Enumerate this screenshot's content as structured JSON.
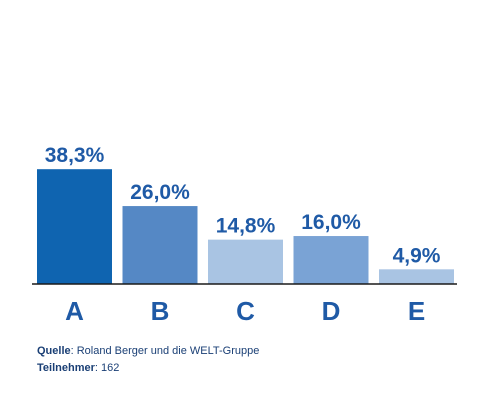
{
  "chart_data": {
    "type": "bar",
    "categories": [
      "A",
      "B",
      "C",
      "D",
      "E"
    ],
    "values": [
      38.3,
      26.0,
      14.8,
      16.0,
      4.9
    ],
    "value_labels": [
      "38,3%",
      "26,0%",
      "14,8%",
      "16,0%",
      "4,9%"
    ],
    "bar_colors": [
      "#0f64b0",
      "#5588c5",
      "#a9c4e3",
      "#7aa3d5",
      "#a9c4e3"
    ],
    "title": "",
    "xlabel": "",
    "ylabel": "",
    "ylim": [
      0,
      40
    ],
    "grid": false,
    "legend": "none"
  },
  "footer": {
    "source_label": "Quelle",
    "source_text": ": Roland Berger und die WELT-Gruppe",
    "participants_label": "Teilnehmer",
    "participants_text": ": 162"
  },
  "colors": {
    "label_text": "#1f5aa6",
    "axis_line": "#1a1a1a",
    "footer_text": "#1a3f75"
  }
}
